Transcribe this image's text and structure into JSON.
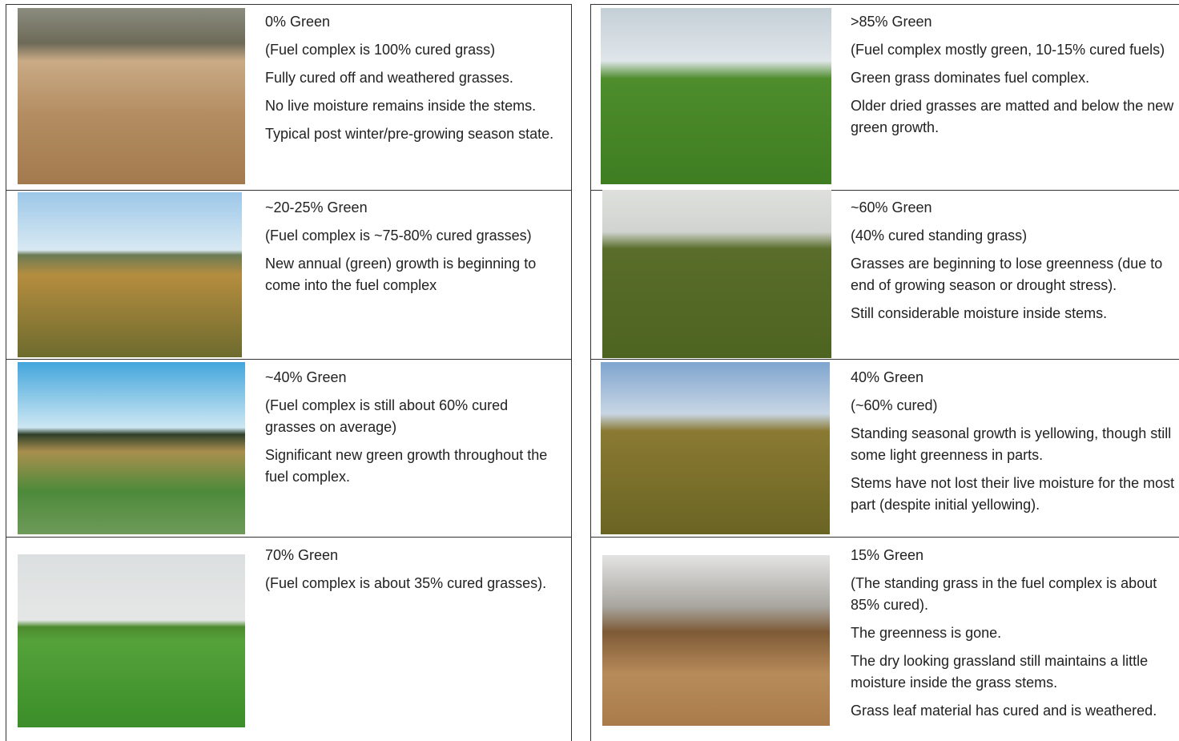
{
  "left": [
    {
      "title": "0% Green",
      "paragraphs": [
        "(Fuel complex is 100% cured grass)",
        "Fully cured off and weathered grasses.",
        "No live moisture remains inside the stems.",
        "Typical post winter/pre-growing season state."
      ]
    },
    {
      "title": "~20-25% Green",
      "paragraphs": [
        "(Fuel complex is ~75-80% cured grasses)",
        "New annual (green) growth is beginning to come into the fuel complex"
      ]
    },
    {
      "title": "~40% Green",
      "paragraphs": [
        "(Fuel complex is still about 60% cured grasses on average)",
        "Significant new green growth throughout the fuel complex."
      ]
    },
    {
      "title": "70% Green",
      "paragraphs": [
        "(Fuel complex is about 35% cured grasses)."
      ]
    }
  ],
  "right": [
    {
      "title": ">85% Green",
      "paragraphs": [
        "(Fuel complex mostly green, 10-15% cured fuels)",
        "Green grass dominates fuel complex.",
        "Older dried grasses are matted and below the new green growth."
      ]
    },
    {
      "title": "~60% Green",
      "paragraphs": [
        "(40% cured standing grass)",
        "Grasses are beginning to lose greenness (due to end of growing season or drought stress).",
        "Still considerable moisture inside stems."
      ]
    },
    {
      "title": "40% Green",
      "paragraphs": [
        "(~60% cured)",
        "Standing seasonal growth is yellowing, though still some light greenness in parts.",
        "Stems have not lost their live moisture for the most part (despite initial yellowing)."
      ]
    },
    {
      "title": "15% Green",
      "paragraphs": [
        "(The standing grass in the fuel complex is about 85% cured).",
        "The greenness is gone.",
        "The dry looking grassland still maintains a little moisture inside the grass stems.",
        "Grass leaf material has cured and is weathered."
      ]
    }
  ]
}
